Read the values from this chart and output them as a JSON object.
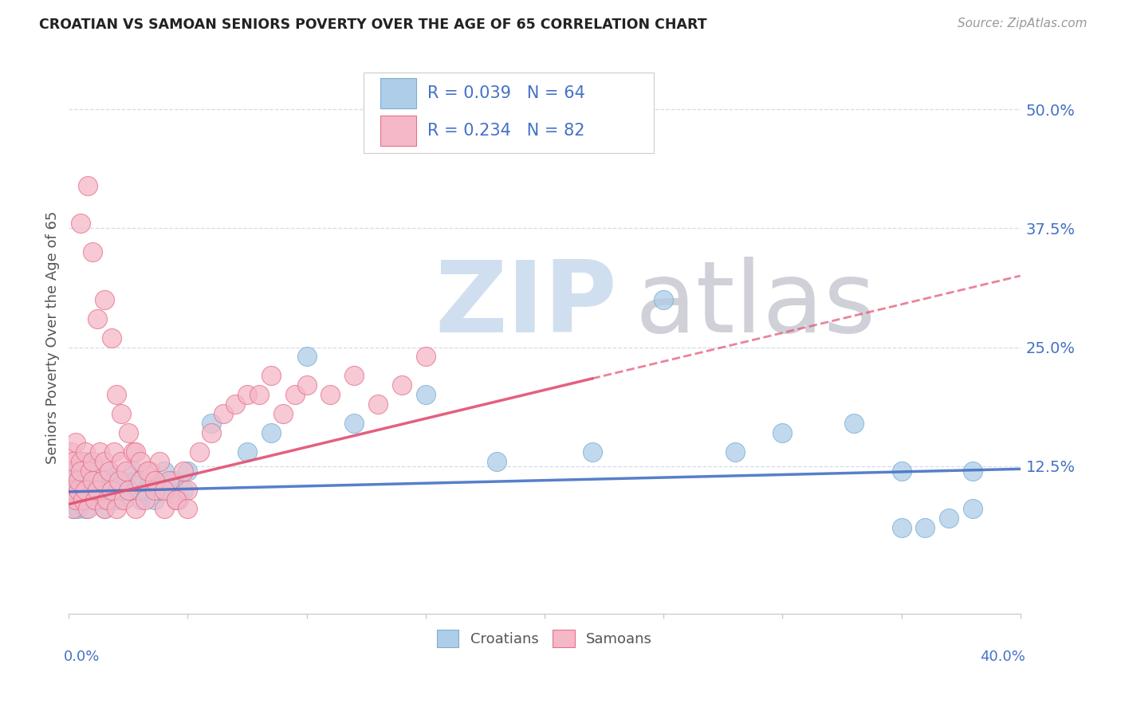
{
  "title": "CROATIAN VS SAMOAN SENIORS POVERTY OVER THE AGE OF 65 CORRELATION CHART",
  "source": "Source: ZipAtlas.com",
  "ylabel": "Seniors Poverty Over the Age of 65",
  "xlim": [
    0.0,
    0.4
  ],
  "ylim": [
    -0.03,
    0.55
  ],
  "croatian_color": "#aecde8",
  "samoan_color": "#f4b8c8",
  "croatian_edge_color": "#7bafd4",
  "samoan_edge_color": "#e8708a",
  "croatian_line_color": "#4472c4",
  "samoan_line_color": "#e05070",
  "legend_text_color": "#4472c4",
  "croatian_R": 0.039,
  "croatian_N": 64,
  "samoan_R": 0.234,
  "samoan_N": 82,
  "background_color": "#ffffff",
  "grid_color": "#c8d4e8",
  "right_yticks": [
    0.0,
    0.125,
    0.25,
    0.375,
    0.5
  ],
  "right_ytick_labels": [
    "",
    "12.5%",
    "25.0%",
    "37.5%",
    "50.0%"
  ],
  "watermark_zip_color": "#d0dff0",
  "watermark_atlas_color": "#d0d0d8"
}
